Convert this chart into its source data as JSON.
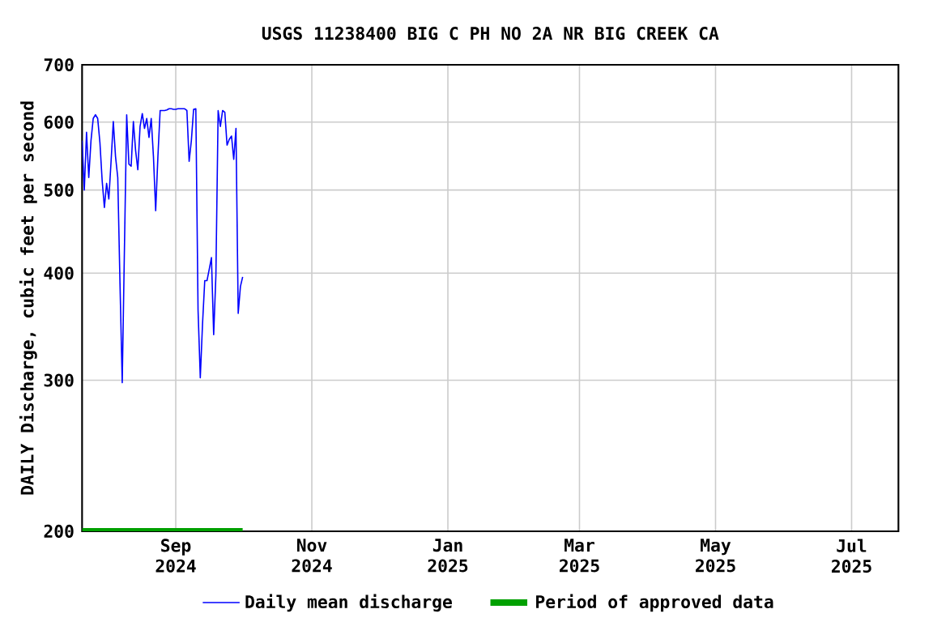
{
  "chart_data": {
    "type": "line",
    "title": "USGS 11238400 BIG C PH NO 2A NR BIG CREEK CA",
    "ylabel": "DAILY Discharge, cubic feet per second",
    "x": [
      "2024-07-21",
      "2024-07-22",
      "2024-07-23",
      "2024-07-24",
      "2024-07-25",
      "2024-07-26",
      "2024-07-27",
      "2024-07-28",
      "2024-07-29",
      "2024-07-30",
      "2024-07-31",
      "2024-08-01",
      "2024-08-02",
      "2024-08-03",
      "2024-08-04",
      "2024-08-05",
      "2024-08-06",
      "2024-08-07",
      "2024-08-08",
      "2024-08-09",
      "2024-08-10",
      "2024-08-11",
      "2024-08-12",
      "2024-08-13",
      "2024-08-14",
      "2024-08-15",
      "2024-08-16",
      "2024-08-17",
      "2024-08-18",
      "2024-08-19",
      "2024-08-20",
      "2024-08-21",
      "2024-08-22",
      "2024-08-23",
      "2024-08-24",
      "2024-08-25",
      "2024-08-26",
      "2024-08-27",
      "2024-08-28",
      "2024-08-29",
      "2024-08-30",
      "2024-08-31",
      "2024-09-01",
      "2024-09-02",
      "2024-09-03",
      "2024-09-04",
      "2024-09-05",
      "2024-09-06",
      "2024-09-07",
      "2024-09-08",
      "2024-09-09",
      "2024-09-10",
      "2024-09-11",
      "2024-09-12",
      "2024-09-13",
      "2024-09-14",
      "2024-09-15",
      "2024-09-16",
      "2024-09-17",
      "2024-09-18",
      "2024-09-19",
      "2024-09-20",
      "2024-09-21",
      "2024-09-22",
      "2024-09-23",
      "2024-09-24",
      "2024-09-25",
      "2024-09-26",
      "2024-09-27",
      "2024-09-28",
      "2024-09-29",
      "2024-09-30",
      "2024-10-01"
    ],
    "series": [
      {
        "name": "Daily mean discharge",
        "color": "#0000ff",
        "values": [
          571,
          500,
          584,
          517,
          571,
          606,
          612,
          606,
          568,
          513,
          477,
          509,
          488,
          540,
          601,
          547,
          517,
          389,
          298,
          428,
          612,
          536,
          533,
          601,
          556,
          528,
          593,
          614,
          590,
          606,
          576,
          606,
          547,
          473,
          547,
          619,
          619,
          619,
          620,
          622,
          622,
          621,
          621,
          622,
          622,
          622,
          622,
          619,
          540,
          571,
          621,
          622,
          362,
          302,
          349,
          392,
          392,
          404,
          417,
          339,
          398,
          619,
          593,
          619,
          616,
          564,
          573,
          578,
          543,
          590,
          359,
          386,
          396
        ]
      },
      {
        "name": "Period of approved data",
        "color": "#00a000",
        "x": [
          "2024-07-21",
          "2024-10-01"
        ],
        "values": [
          200,
          200
        ]
      }
    ],
    "xlim": [
      "2024-07-21",
      "2025-07-22"
    ],
    "xticks": [
      {
        "value": "2024-09-01",
        "label": "Sep 2024"
      },
      {
        "value": "2024-11-01",
        "label": "Nov 2024"
      },
      {
        "value": "2025-01-01",
        "label": "Jan 2025"
      },
      {
        "value": "2025-03-01",
        "label": "Mar 2025"
      },
      {
        "value": "2025-05-01",
        "label": "May 2025"
      },
      {
        "value": "2025-07-01",
        "label": "Jul 2025"
      }
    ],
    "ylim": [
      200,
      700
    ],
    "yticks": [
      200,
      300,
      400,
      500,
      600,
      700
    ],
    "log": "y",
    "grid": true,
    "legend": "bottom",
    "line_style": "solid",
    "marker": "none"
  }
}
